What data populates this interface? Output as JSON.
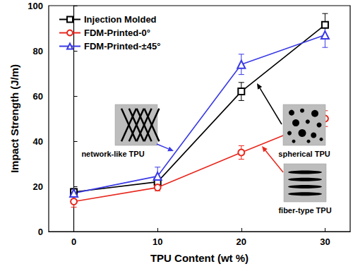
{
  "chart_data": {
    "type": "line",
    "xlabel": "TPU Content (wt %)",
    "ylabel": "Impact Strength (J/m)",
    "x": [
      0,
      10,
      20,
      30
    ],
    "xlim": [
      -3,
      33
    ],
    "xticks": [
      0,
      10,
      20,
      30
    ],
    "ylim": [
      0,
      100
    ],
    "yticks": [
      0,
      20,
      40,
      60,
      80,
      100
    ],
    "grid": false,
    "legend": "upper left",
    "series": [
      {
        "name": "Injection Molded",
        "color": "#000000",
        "marker": "square",
        "values": [
          17.5,
          22,
          62,
          91.5
        ],
        "errors": [
          1.5,
          1.5,
          4,
          5
        ]
      },
      {
        "name": "FDM-Printed-0°",
        "color": "#e8281e",
        "marker": "circle",
        "values": [
          13.3,
          19.5,
          35,
          50
        ],
        "errors": [
          2.5,
          1.5,
          3,
          3.5
        ]
      },
      {
        "name": "FDM-Printed-±45°",
        "color": "#3a3ae6",
        "marker": "triangle",
        "values": [
          17,
          24.5,
          74,
          87
        ],
        "errors": [
          1.5,
          4,
          4.5,
          5.5
        ]
      }
    ],
    "annotations": [
      {
        "text": "spherical TPU",
        "series": "Injection Molded"
      },
      {
        "text": "network-like TPU",
        "series": "FDM-Printed-±45°"
      },
      {
        "text": "fiber-type TPU",
        "series": "FDM-Printed-0°"
      }
    ]
  }
}
